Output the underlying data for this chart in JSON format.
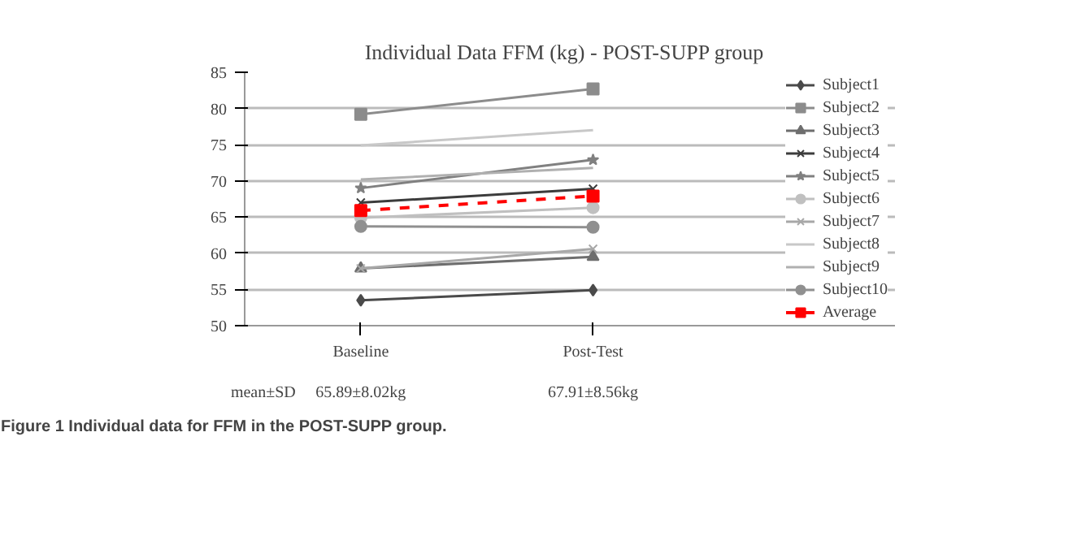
{
  "chart_data": {
    "type": "line",
    "title": "Individual  Data FFM (kg)  - POST-SUPP group",
    "categories": [
      "Baseline",
      "Post-Test"
    ],
    "series": [
      {
        "name": "Subject1",
        "color": "#4a4a4a",
        "marker": "diamond",
        "values": [
          53.5,
          54.9
        ]
      },
      {
        "name": "Subject2",
        "color": "#8c8c8c",
        "marker": "square",
        "values": [
          79.2,
          82.7
        ]
      },
      {
        "name": "Subject3",
        "color": "#6e6e6e",
        "marker": "triangle",
        "values": [
          57.9,
          59.5
        ]
      },
      {
        "name": "Subject4",
        "color": "#3c3c3c",
        "marker": "cross",
        "values": [
          67.0,
          68.9
        ]
      },
      {
        "name": "Subject5",
        "color": "#808080",
        "marker": "star",
        "values": [
          69.0,
          72.9
        ]
      },
      {
        "name": "Subject6",
        "color": "#c0c0c0",
        "marker": "circle",
        "values": [
          64.9,
          66.3
        ]
      },
      {
        "name": "Subject7",
        "color": "#a8a8a8",
        "marker": "cross",
        "values": [
          57.9,
          60.6
        ]
      },
      {
        "name": "Subject8",
        "color": "#c8c8c8",
        "marker": "none",
        "values": [
          74.9,
          77.0
        ]
      },
      {
        "name": "Subject9",
        "color": "#b0b0b0",
        "marker": "none",
        "values": [
          70.2,
          71.8
        ]
      },
      {
        "name": "Subject10",
        "color": "#909090",
        "marker": "circle",
        "values": [
          63.7,
          63.6
        ]
      },
      {
        "name": "Average",
        "color": "#ff0000",
        "marker": "square",
        "line_style": "dashed",
        "values": [
          65.9,
          67.9
        ]
      }
    ],
    "ylim": [
      50,
      85
    ],
    "yticks": [
      50,
      55,
      60,
      65,
      70,
      75,
      80,
      85
    ],
    "grid": "y",
    "legend": "right",
    "annotations": [
      "mean±SD",
      "65.89±8.02kg",
      "67.91±8.56kg",
      "Figure 1 Individual data for FFM in the POST-SUPP group."
    ]
  }
}
